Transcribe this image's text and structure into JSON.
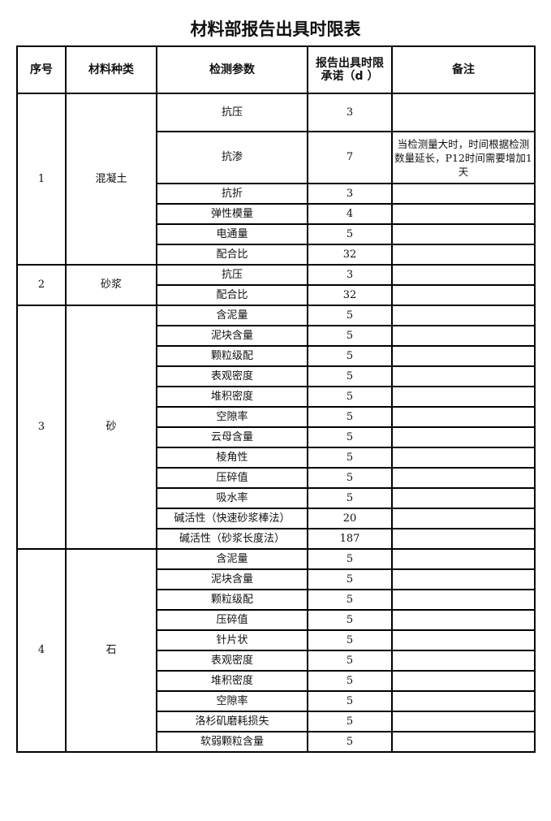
{
  "title": "材料部报告出具时限表",
  "headers": [
    "序号",
    "材料种类",
    "检测参数",
    "报告出具时限承诺（d ）",
    "备注"
  ],
  "groups": [
    {
      "no": "1",
      "material": "混凝土",
      "items": [
        {
          "param": "抗压",
          "days": "3",
          "note": ""
        },
        {
          "param": "抗渗",
          "days": "7",
          "note": "当检测量大时，时间根据检测数量延长，P12时间需要增加1天"
        },
        {
          "param": "抗折",
          "days": "3",
          "note": ""
        },
        {
          "param": "弹性模量",
          "days": "4",
          "note": ""
        },
        {
          "param": "电通量",
          "days": "5",
          "note": ""
        },
        {
          "param": "配合比",
          "days": "32",
          "note": ""
        }
      ]
    },
    {
      "no": "2",
      "material": "砂浆",
      "items": [
        {
          "param": "抗压",
          "days": "3",
          "note": ""
        },
        {
          "param": "配合比",
          "days": "32",
          "note": ""
        }
      ]
    },
    {
      "no": "3",
      "material": "砂",
      "items": [
        {
          "param": "含泥量",
          "days": "5",
          "note": ""
        },
        {
          "param": "泥块含量",
          "days": "5",
          "note": ""
        },
        {
          "param": "颗粒级配",
          "days": "5",
          "note": ""
        },
        {
          "param": "表观密度",
          "days": "5",
          "note": ""
        },
        {
          "param": "堆积密度",
          "days": "5",
          "note": ""
        },
        {
          "param": "空隙率",
          "days": "5",
          "note": ""
        },
        {
          "param": "云母含量",
          "days": "5",
          "note": ""
        },
        {
          "param": "棱角性",
          "days": "5",
          "note": ""
        },
        {
          "param": "压碎值",
          "days": "5",
          "note": ""
        },
        {
          "param": "吸水率",
          "days": "5",
          "note": ""
        },
        {
          "param": "碱活性（快速砂浆棒法）",
          "days": "20",
          "note": ""
        },
        {
          "param": "碱活性（砂浆长度法）",
          "days": "187",
          "note": ""
        }
      ]
    },
    {
      "no": "4",
      "material": "石",
      "items": [
        {
          "param": "含泥量",
          "days": "5",
          "note": ""
        },
        {
          "param": "泥块含量",
          "days": "5",
          "note": ""
        },
        {
          "param": "颗粒级配",
          "days": "5",
          "note": ""
        },
        {
          "param": "压碎值",
          "days": "5",
          "note": ""
        },
        {
          "param": "针片状",
          "days": "5",
          "note": ""
        },
        {
          "param": "表观密度",
          "days": "5",
          "note": ""
        },
        {
          "param": "堆积密度",
          "days": "5",
          "note": ""
        },
        {
          "param": "空隙率",
          "days": "5",
          "note": ""
        },
        {
          "param": "洛杉矶磨耗损失",
          "days": "5",
          "note": ""
        },
        {
          "param": "软弱颗粒含量",
          "days": "5",
          "note": ""
        }
      ]
    }
  ]
}
